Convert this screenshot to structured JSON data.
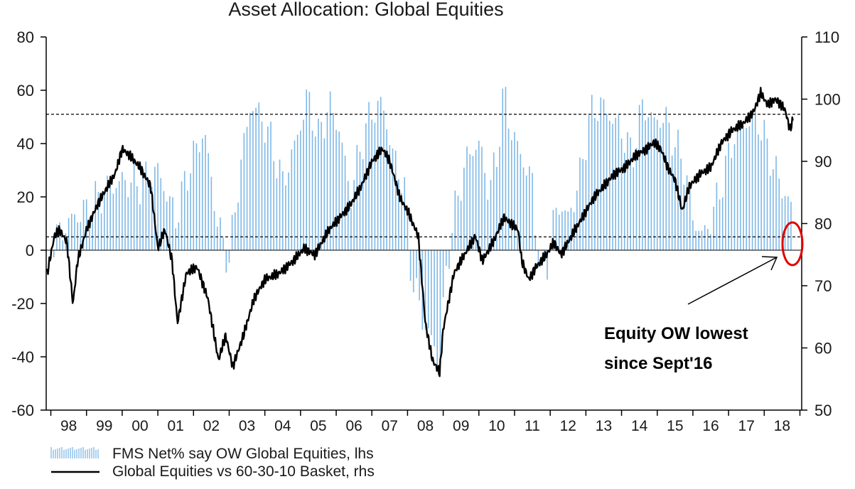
{
  "chart_data": {
    "type": "bar+line",
    "title": "Asset Allocation: Global Equities",
    "x_categories": [
      "98",
      "99",
      "00",
      "01",
      "02",
      "03",
      "04",
      "05",
      "06",
      "07",
      "08",
      "09",
      "10",
      "11",
      "12",
      "13",
      "14",
      "15",
      "16",
      "17",
      "18"
    ],
    "lhs_axis": {
      "ticks": [
        "80",
        "60",
        "40",
        "20",
        "0",
        "-20",
        "-40",
        "-60"
      ],
      "ylim": [
        -60,
        80
      ]
    },
    "rhs_axis": {
      "ticks": [
        "110",
        "100",
        "90",
        "80",
        "70",
        "60",
        "50"
      ],
      "ylim": [
        50,
        110
      ]
    },
    "reference_lines": {
      "lhs_average": 51,
      "lhs_secondary": 5,
      "zero": 0
    },
    "series": [
      {
        "name": "FMS Net% say OW Global Equities, lhs",
        "type": "bar",
        "axis": "lhs",
        "color": "#7fb8e6",
        "keypoints": [
          [
            1998.0,
            2
          ],
          [
            1998.6,
            12
          ],
          [
            1999.0,
            15
          ],
          [
            1999.5,
            22
          ],
          [
            2000.0,
            26
          ],
          [
            2000.5,
            25
          ],
          [
            2001.0,
            30
          ],
          [
            2001.5,
            12
          ],
          [
            2001.9,
            32
          ],
          [
            2002.3,
            45
          ],
          [
            2002.7,
            8
          ],
          [
            2003.0,
            -4
          ],
          [
            2003.3,
            30
          ],
          [
            2003.6,
            55
          ],
          [
            2003.9,
            50
          ],
          [
            2004.2,
            40
          ],
          [
            2004.5,
            25
          ],
          [
            2004.9,
            42
          ],
          [
            2005.2,
            58
          ],
          [
            2005.5,
            42
          ],
          [
            2005.8,
            55
          ],
          [
            2006.1,
            45
          ],
          [
            2006.4,
            20
          ],
          [
            2006.7,
            40
          ],
          [
            2007.0,
            52
          ],
          [
            2007.3,
            55
          ],
          [
            2007.6,
            35
          ],
          [
            2007.9,
            25
          ],
          [
            2008.1,
            -8
          ],
          [
            2008.4,
            -25
          ],
          [
            2008.7,
            -35
          ],
          [
            2008.9,
            -42
          ],
          [
            2009.1,
            -5
          ],
          [
            2009.4,
            20
          ],
          [
            2009.7,
            36
          ],
          [
            2010.0,
            40
          ],
          [
            2010.3,
            22
          ],
          [
            2010.5,
            35
          ],
          [
            2010.7,
            60
          ],
          [
            2010.9,
            45
          ],
          [
            2011.2,
            35
          ],
          [
            2011.5,
            25
          ],
          [
            2011.7,
            -8
          ],
          [
            2011.9,
            -5
          ],
          [
            2012.2,
            18
          ],
          [
            2012.5,
            12
          ],
          [
            2012.8,
            25
          ],
          [
            2013.1,
            50
          ],
          [
            2013.4,
            55
          ],
          [
            2013.7,
            50
          ],
          [
            2014.0,
            45
          ],
          [
            2014.3,
            35
          ],
          [
            2014.6,
            55
          ],
          [
            2014.9,
            48
          ],
          [
            2015.2,
            50
          ],
          [
            2015.5,
            40
          ],
          [
            2015.8,
            30
          ],
          [
            2016.0,
            12
          ],
          [
            2016.3,
            5
          ],
          [
            2016.6,
            15
          ],
          [
            2016.9,
            30
          ],
          [
            2017.2,
            45
          ],
          [
            2017.5,
            48
          ],
          [
            2017.8,
            50
          ],
          [
            2018.0,
            42
          ],
          [
            2018.3,
            30
          ],
          [
            2018.55,
            22
          ],
          [
            2018.75,
            16
          ]
        ]
      },
      {
        "name": "Global Equities vs 60-30-10 Basket, rhs",
        "type": "line",
        "axis": "rhs",
        "color": "#000000",
        "keypoints": [
          [
            1997.9,
            72
          ],
          [
            1998.1,
            78
          ],
          [
            1998.25,
            79
          ],
          [
            1998.45,
            77
          ],
          [
            1998.62,
            67
          ],
          [
            1998.75,
            74
          ],
          [
            1999.0,
            79
          ],
          [
            1999.3,
            83
          ],
          [
            1999.6,
            86
          ],
          [
            1999.8,
            88
          ],
          [
            2000.0,
            92
          ],
          [
            2000.2,
            91
          ],
          [
            2000.5,
            89
          ],
          [
            2000.8,
            86
          ],
          [
            2001.0,
            76
          ],
          [
            2001.2,
            79
          ],
          [
            2001.4,
            74
          ],
          [
            2001.55,
            64
          ],
          [
            2001.8,
            72
          ],
          [
            2002.1,
            73
          ],
          [
            2002.4,
            68
          ],
          [
            2002.7,
            58
          ],
          [
            2002.9,
            62
          ],
          [
            2003.1,
            57
          ],
          [
            2003.4,
            62
          ],
          [
            2003.7,
            68
          ],
          [
            2004.0,
            71
          ],
          [
            2004.4,
            72
          ],
          [
            2004.8,
            74
          ],
          [
            2005.1,
            76
          ],
          [
            2005.4,
            75
          ],
          [
            2005.8,
            79
          ],
          [
            2006.1,
            81
          ],
          [
            2006.4,
            83
          ],
          [
            2006.7,
            86
          ],
          [
            2007.0,
            90
          ],
          [
            2007.3,
            92
          ],
          [
            2007.5,
            90
          ],
          [
            2007.8,
            84
          ],
          [
            2008.0,
            82
          ],
          [
            2008.3,
            78
          ],
          [
            2008.5,
            64
          ],
          [
            2008.7,
            58
          ],
          [
            2008.9,
            56
          ],
          [
            2009.0,
            63
          ],
          [
            2009.3,
            72
          ],
          [
            2009.6,
            75
          ],
          [
            2009.9,
            78
          ],
          [
            2010.1,
            74
          ],
          [
            2010.4,
            77
          ],
          [
            2010.7,
            81
          ],
          [
            2010.9,
            80
          ],
          [
            2011.1,
            79
          ],
          [
            2011.2,
            74
          ],
          [
            2011.4,
            71
          ],
          [
            2011.6,
            73
          ],
          [
            2011.9,
            75
          ],
          [
            2012.1,
            77
          ],
          [
            2012.3,
            75
          ],
          [
            2012.6,
            78
          ],
          [
            2012.9,
            81
          ],
          [
            2013.2,
            84
          ],
          [
            2013.5,
            86
          ],
          [
            2013.8,
            88
          ],
          [
            2014.1,
            89
          ],
          [
            2014.4,
            91
          ],
          [
            2014.7,
            92
          ],
          [
            2014.9,
            93
          ],
          [
            2015.1,
            92
          ],
          [
            2015.3,
            89
          ],
          [
            2015.5,
            87
          ],
          [
            2015.7,
            82
          ],
          [
            2015.9,
            86
          ],
          [
            2016.2,
            88
          ],
          [
            2016.5,
            89
          ],
          [
            2016.8,
            93
          ],
          [
            2017.1,
            95
          ],
          [
            2017.4,
            96
          ],
          [
            2017.7,
            98
          ],
          [
            2017.9,
            101
          ],
          [
            2018.1,
            99
          ],
          [
            2018.3,
            100
          ],
          [
            2018.5,
            99
          ],
          [
            2018.6,
            98
          ],
          [
            2018.72,
            95
          ],
          [
            2018.82,
            97
          ]
        ]
      }
    ],
    "legend": {
      "placement": "bottom-left",
      "entries": [
        "FMS Net% say OW Global Equities, lhs",
        "Global Equities vs 60-30-10 Basket, rhs"
      ]
    },
    "annotation": {
      "lines": [
        "Equity OW lowest",
        "since Sept'16"
      ],
      "arrow_color": "#000000",
      "circle_color": "#e00000"
    },
    "colors": {
      "bars": "#7fb8e6",
      "line": "#000000",
      "circle": "#e00000"
    }
  }
}
